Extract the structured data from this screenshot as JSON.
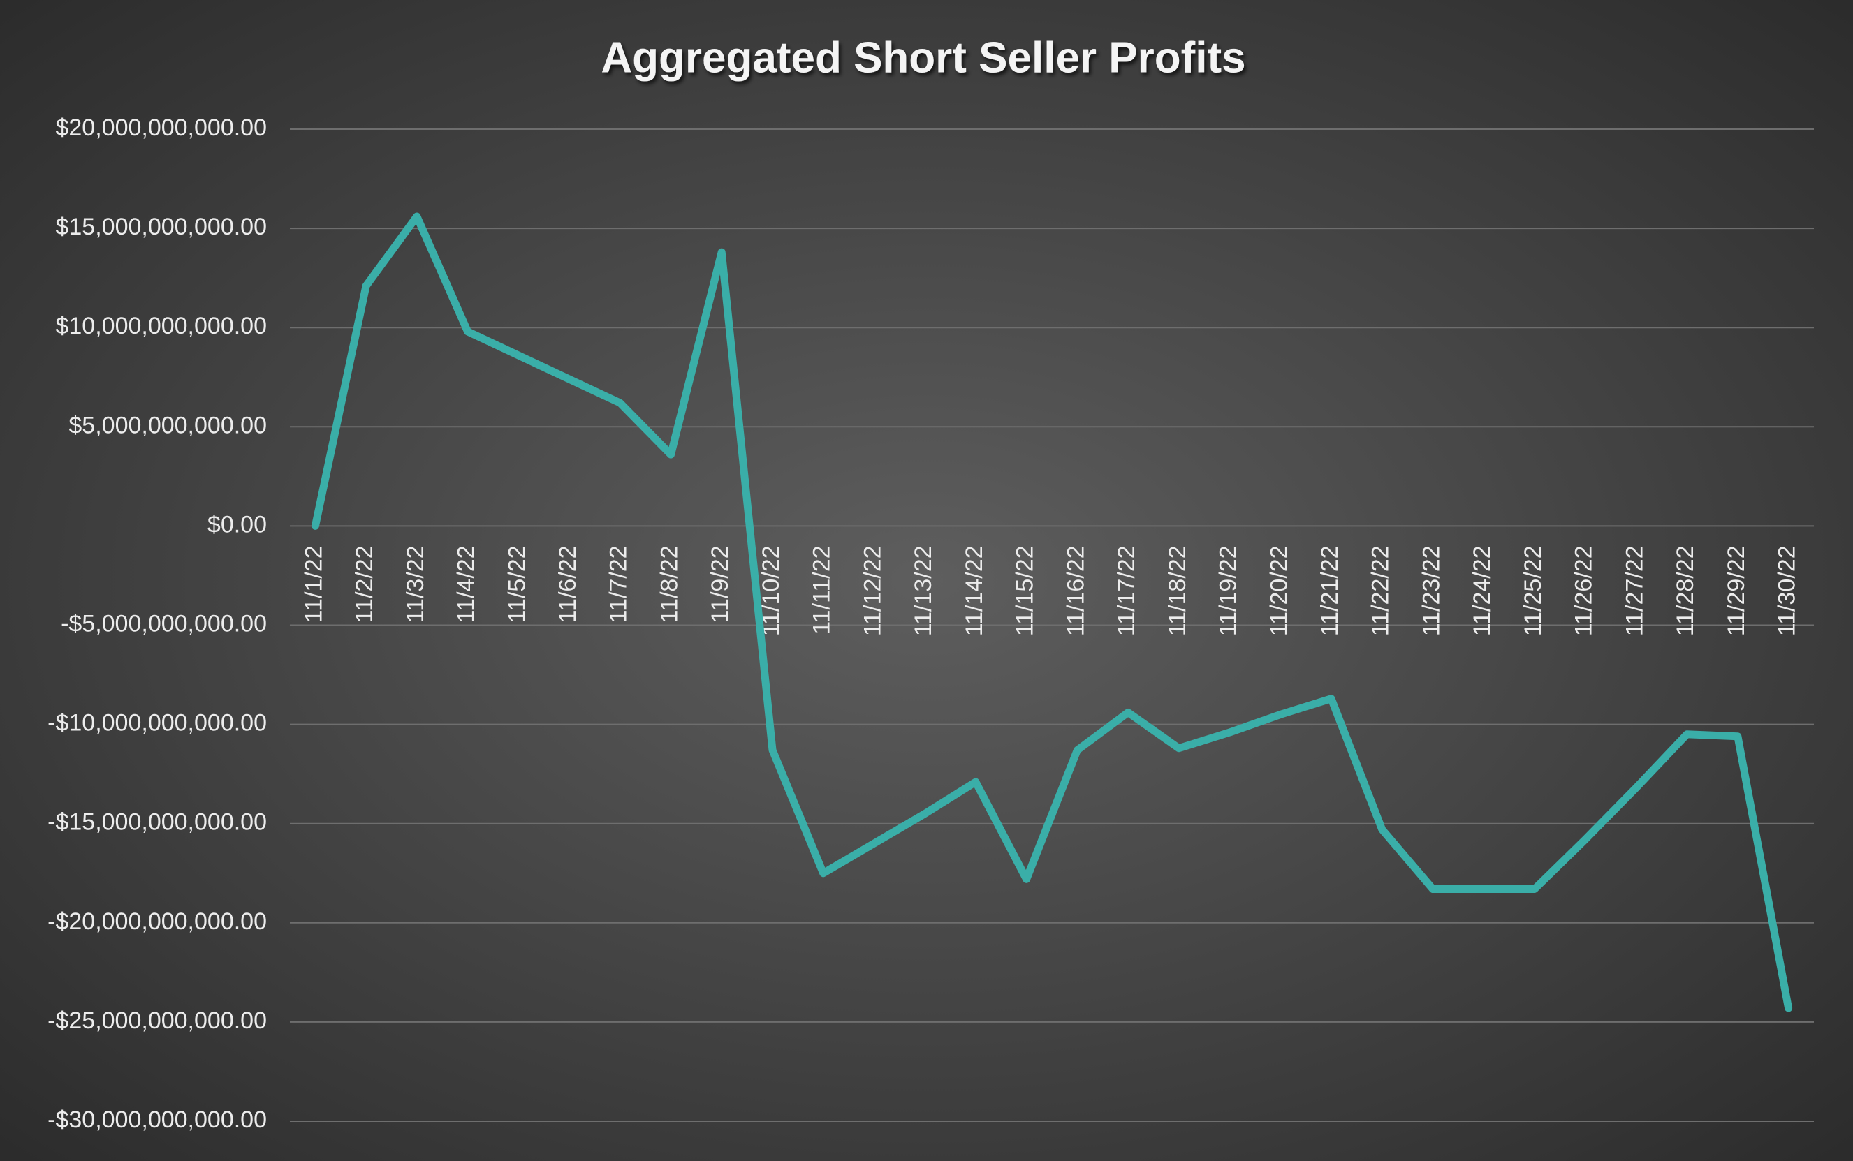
{
  "chart_data": {
    "type": "line",
    "title": "Aggregated Short Seller Profits",
    "categories": [
      "11/1/22",
      "11/2/22",
      "11/3/22",
      "11/4/22",
      "11/5/22",
      "11/6/22",
      "11/7/22",
      "11/8/22",
      "11/9/22",
      "11/10/22",
      "11/11/22",
      "11/12/22",
      "11/13/22",
      "11/14/22",
      "11/15/22",
      "11/16/22",
      "11/17/22",
      "11/18/22",
      "11/19/22",
      "11/20/22",
      "11/21/22",
      "11/22/22",
      "11/23/22",
      "11/24/22",
      "11/25/22",
      "11/26/22",
      "11/27/22",
      "11/28/22",
      "11/29/22",
      "11/30/22"
    ],
    "series": [
      {
        "name": "Aggregated Short Seller Profits",
        "color": "#3aaea8",
        "values": [
          0,
          12100000000,
          15600000000,
          9800000000,
          8600000000,
          7400000000,
          6200000000,
          3600000000,
          13800000000,
          -11300000000,
          -17500000000,
          -16000000000,
          -14500000000,
          -12900000000,
          -17800000000,
          -11300000000,
          -9400000000,
          -11200000000,
          -10400000000,
          -9500000000,
          -8700000000,
          -15300000000,
          -18300000000,
          -18300000000,
          -18300000000,
          -15800000000,
          -13200000000,
          -10500000000,
          -10600000000,
          -24300000000
        ]
      }
    ],
    "ylim": [
      -30000000000,
      20000000000
    ],
    "yticks": [
      {
        "value": -30000000000,
        "label": "-$30,000,000,000.00"
      },
      {
        "value": -25000000000,
        "label": "-$25,000,000,000.00"
      },
      {
        "value": -20000000000,
        "label": "-$20,000,000,000.00"
      },
      {
        "value": -15000000000,
        "label": "-$15,000,000,000.00"
      },
      {
        "value": -10000000000,
        "label": "-$10,000,000,000.00"
      },
      {
        "value": -5000000000,
        "label": "-$5,000,000,000.00"
      },
      {
        "value": 0,
        "label": "$0.00"
      },
      {
        "value": 5000000000,
        "label": "$5,000,000,000.00"
      },
      {
        "value": 10000000000,
        "label": "$10,000,000,000.00"
      },
      {
        "value": 15000000000,
        "label": "$15,000,000,000.00"
      },
      {
        "value": 20000000000,
        "label": "$20,000,000,000.00"
      }
    ],
    "grid": true
  }
}
